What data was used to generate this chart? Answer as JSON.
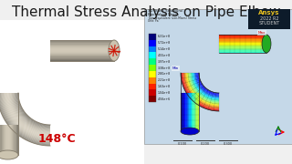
{
  "title": "Thermal Stress Analysis on Pipe Elbow",
  "title_fontsize": 11,
  "title_color": "#1a1a1a",
  "bg_color": "#f0f0f0",
  "temp_label": "148°C",
  "temp_color": "#cc0000",
  "temp_fontsize": 9,
  "pipe_color_light": "#d4cfc4",
  "pipe_color_mid": "#b8b2a4",
  "pipe_color_dark": "#9a9488",
  "ansys_bg": "#c8dae8",
  "ansys_panel_bg": "#dce8f0",
  "colorbar_colors": [
    "#00007a",
    "#0000ff",
    "#0080ff",
    "#00ffff",
    "#00ff80",
    "#80ff00",
    "#ffff00",
    "#ff8000",
    "#ff2000",
    "#cc0000",
    "#800000"
  ],
  "cb_labels": [
    "6.31e+8",
    "5.72e+8",
    "5.14e+8",
    "4.55e+8",
    "3.97e+8",
    "3.38e+8",
    "2.80e+8",
    "2.21e+8",
    "1.63e+8",
    "1.04e+8",
    "4.56e+6"
  ],
  "left_panel_bg": "#ffffff",
  "right_panel_bg": "#c5d8e8"
}
